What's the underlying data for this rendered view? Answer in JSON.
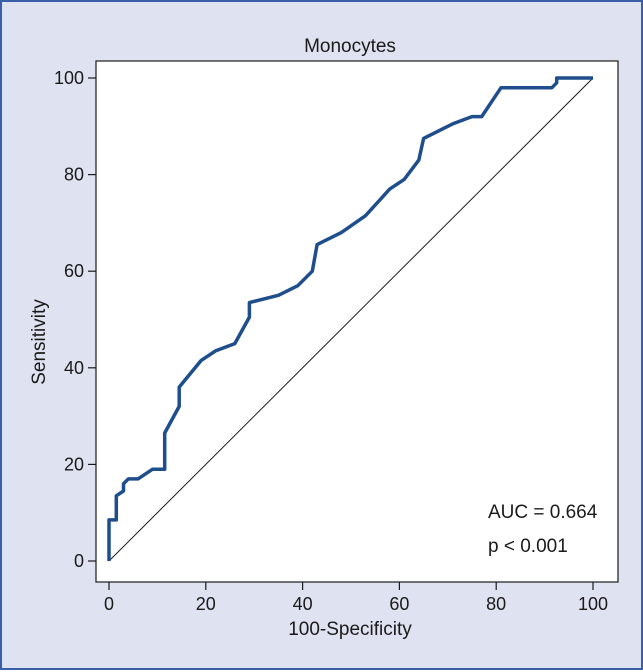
{
  "chart_data": {
    "type": "line",
    "title": "Monocytes",
    "xlabel": "100-Specificity",
    "ylabel": "Sensitivity",
    "xlim": [
      0,
      100
    ],
    "ylim": [
      0,
      100
    ],
    "x_ticks": [
      0,
      20,
      40,
      60,
      80,
      100
    ],
    "y_ticks": [
      0,
      20,
      40,
      60,
      80,
      100
    ],
    "grid": false,
    "series": [
      {
        "name": "ROC curve",
        "color": "#1f4e8c",
        "x": [
          0,
          0,
          1.5,
          1.5,
          3,
          3,
          4,
          6,
          9,
          11.5,
          11.5,
          14.5,
          14.5,
          19,
          22,
          26,
          29,
          29,
          35,
          39,
          42,
          43,
          48,
          53,
          58,
          61,
          64,
          65,
          71,
          75,
          77,
          81,
          84,
          91.5,
          92.5,
          92.5,
          100
        ],
        "y": [
          0,
          8.5,
          8.5,
          13.5,
          14.5,
          16,
          17,
          17,
          19,
          19,
          26.5,
          32,
          36,
          41.5,
          43.5,
          45,
          50.5,
          53.5,
          55,
          57,
          60,
          65.5,
          68,
          71.5,
          77,
          79,
          83,
          87.5,
          90.5,
          92,
          92,
          98,
          98,
          98,
          99,
          100,
          100
        ]
      },
      {
        "name": "Reference line",
        "color": "#1a1a1a",
        "x": [
          0,
          100
        ],
        "y": [
          0,
          100
        ]
      }
    ],
    "annotations": [
      "AUC = 0.664",
      "p < 0.001"
    ]
  }
}
